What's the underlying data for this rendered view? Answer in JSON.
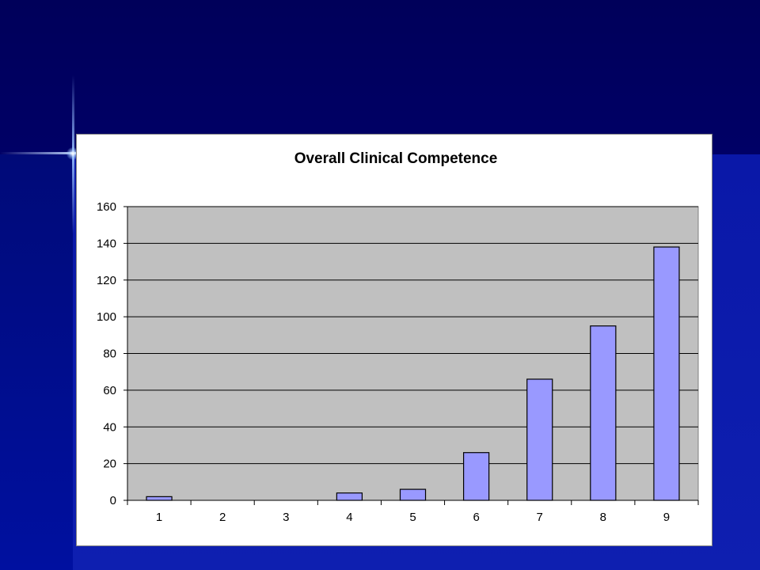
{
  "slide": {
    "background_color": "#000066",
    "accent_color": "#0e1fb0"
  },
  "chart_data": {
    "type": "bar",
    "title": "Overall Clinical Competence",
    "xlabel": "",
    "ylabel": "",
    "categories": [
      "1",
      "2",
      "3",
      "4",
      "5",
      "6",
      "7",
      "8",
      "9"
    ],
    "values": [
      2,
      0,
      0,
      4,
      6,
      26,
      66,
      95,
      138
    ],
    "ylim": [
      0,
      160
    ],
    "yticks": [
      0,
      20,
      40,
      60,
      80,
      100,
      120,
      140,
      160
    ],
    "grid": true,
    "legend": "none",
    "bar_color": "#9999ff",
    "plot_background": "#c0c0c0"
  }
}
